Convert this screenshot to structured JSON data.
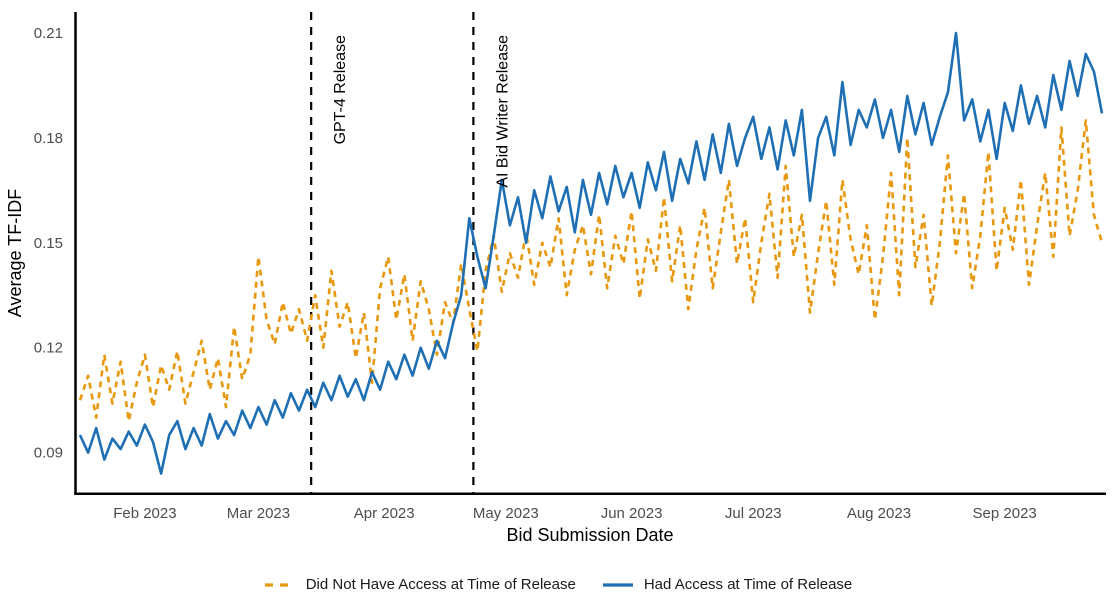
{
  "chart_data": {
    "type": "line",
    "title": "",
    "xlabel": "Bid Submission Date",
    "ylabel": "Average TF-IDF",
    "grid": false,
    "legend_position": "bottom",
    "x_start_date": "2023-01-16",
    "x_step_days": 2,
    "total_days": 252,
    "ylim": [
      0.078,
      0.216
    ],
    "y_ticks": [
      0.09,
      0.12,
      0.15,
      0.18,
      0.21
    ],
    "y_tick_labels": [
      "0.09",
      "0.12",
      "0.15",
      "0.18",
      "0.21"
    ],
    "x_ticks": [
      {
        "label": "Feb 2023",
        "day": 16
      },
      {
        "label": "Mar 2023",
        "day": 44
      },
      {
        "label": "Apr 2023",
        "day": 75
      },
      {
        "label": "May 2023",
        "day": 105
      },
      {
        "label": "Jun 2023",
        "day": 136
      },
      {
        "label": "Jul 2023",
        "day": 166
      },
      {
        "label": "Aug 2023",
        "day": 197
      },
      {
        "label": "Sep 2023",
        "day": 228
      }
    ],
    "annotations": [
      {
        "label": "GPT-4 Release",
        "day": 57,
        "date": "2023-03-14"
      },
      {
        "label": "AI Bid Writer Release",
        "day": 97,
        "date": "2023-04-23"
      }
    ],
    "annotation_line_color": "#000000",
    "axis_color": "#000000",
    "tick_label_color": "#4D4D4D",
    "series": [
      {
        "name": "Did Not Have Access at Time of Release",
        "color": "#E8980F",
        "style": "dashed",
        "values": [
          0.105,
          0.112,
          0.1,
          0.118,
          0.104,
          0.116,
          0.099,
          0.11,
          0.118,
          0.103,
          0.115,
          0.108,
          0.119,
          0.104,
          0.113,
          0.122,
          0.108,
          0.117,
          0.103,
          0.126,
          0.111,
          0.118,
          0.146,
          0.128,
          0.121,
          0.133,
          0.124,
          0.131,
          0.122,
          0.135,
          0.12,
          0.142,
          0.126,
          0.133,
          0.117,
          0.13,
          0.11,
          0.137,
          0.146,
          0.128,
          0.141,
          0.122,
          0.139,
          0.131,
          0.118,
          0.133,
          0.127,
          0.144,
          0.131,
          0.119,
          0.142,
          0.152,
          0.136,
          0.147,
          0.14,
          0.153,
          0.138,
          0.15,
          0.143,
          0.157,
          0.135,
          0.148,
          0.155,
          0.141,
          0.158,
          0.137,
          0.152,
          0.144,
          0.159,
          0.134,
          0.151,
          0.142,
          0.163,
          0.139,
          0.155,
          0.131,
          0.148,
          0.16,
          0.137,
          0.153,
          0.168,
          0.144,
          0.157,
          0.133,
          0.15,
          0.164,
          0.14,
          0.172,
          0.146,
          0.158,
          0.13,
          0.147,
          0.162,
          0.138,
          0.168,
          0.151,
          0.141,
          0.155,
          0.128,
          0.146,
          0.17,
          0.135,
          0.18,
          0.143,
          0.158,
          0.132,
          0.15,
          0.175,
          0.147,
          0.164,
          0.137,
          0.152,
          0.176,
          0.142,
          0.16,
          0.148,
          0.168,
          0.138,
          0.155,
          0.17,
          0.146,
          0.183,
          0.152,
          0.165,
          0.185,
          0.158,
          0.15
        ]
      },
      {
        "name": "Had Access at Time of Release",
        "color": "#1F6FB4",
        "style": "solid",
        "values": [
          0.095,
          0.09,
          0.097,
          0.088,
          0.094,
          0.091,
          0.096,
          0.092,
          0.098,
          0.093,
          0.084,
          0.095,
          0.099,
          0.091,
          0.097,
          0.092,
          0.101,
          0.094,
          0.099,
          0.095,
          0.102,
          0.097,
          0.103,
          0.098,
          0.105,
          0.1,
          0.107,
          0.102,
          0.108,
          0.103,
          0.11,
          0.105,
          0.112,
          0.106,
          0.111,
          0.105,
          0.113,
          0.108,
          0.116,
          0.111,
          0.118,
          0.112,
          0.12,
          0.114,
          0.122,
          0.117,
          0.127,
          0.135,
          0.157,
          0.146,
          0.137,
          0.152,
          0.168,
          0.155,
          0.163,
          0.15,
          0.165,
          0.157,
          0.169,
          0.159,
          0.166,
          0.153,
          0.168,
          0.158,
          0.17,
          0.161,
          0.172,
          0.163,
          0.17,
          0.16,
          0.173,
          0.165,
          0.176,
          0.162,
          0.174,
          0.167,
          0.179,
          0.168,
          0.181,
          0.17,
          0.184,
          0.172,
          0.18,
          0.186,
          0.174,
          0.183,
          0.171,
          0.185,
          0.175,
          0.188,
          0.162,
          0.18,
          0.186,
          0.175,
          0.196,
          0.178,
          0.188,
          0.183,
          0.191,
          0.18,
          0.188,
          0.176,
          0.192,
          0.181,
          0.19,
          0.178,
          0.186,
          0.193,
          0.21,
          0.185,
          0.191,
          0.179,
          0.188,
          0.174,
          0.19,
          0.182,
          0.195,
          0.184,
          0.192,
          0.183,
          0.198,
          0.188,
          0.202,
          0.192,
          0.204,
          0.199,
          0.187
        ]
      }
    ]
  }
}
